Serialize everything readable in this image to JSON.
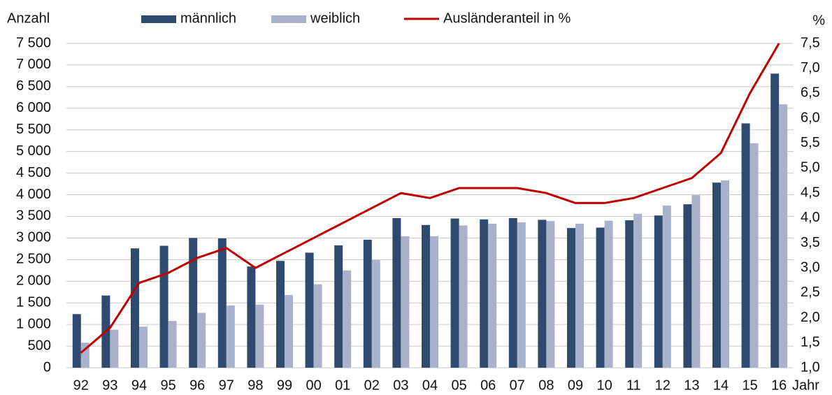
{
  "chart_data": {
    "type": "bar_line",
    "y_label": "Anzahl",
    "y2_label": "%",
    "x_label": "Jahr",
    "categories": [
      "92",
      "93",
      "94",
      "95",
      "96",
      "97",
      "98",
      "99",
      "00",
      "01",
      "02",
      "03",
      "04",
      "05",
      "06",
      "07",
      "08",
      "09",
      "10",
      "11",
      "12",
      "13",
      "14",
      "15",
      "16"
    ],
    "series": [
      {
        "name": "männlich",
        "color": "#2e4a6e",
        "values": [
          1240,
          1670,
          2760,
          2820,
          3000,
          2990,
          2340,
          2470,
          2660,
          2830,
          2960,
          3460,
          3300,
          3450,
          3430,
          3460,
          3420,
          3230,
          3240,
          3410,
          3520,
          3780,
          4280,
          5650,
          6800
        ]
      },
      {
        "name": "weiblich",
        "color": "#a9b1cc",
        "values": [
          580,
          880,
          950,
          1080,
          1270,
          1440,
          1460,
          1680,
          1930,
          2250,
          2490,
          3040,
          3040,
          3290,
          3330,
          3360,
          3390,
          3330,
          3400,
          3560,
          3750,
          3990,
          4330,
          5190,
          6090
        ]
      },
      {
        "name": "Ausländeranteil in %",
        "color": "#c00000",
        "axis": "y2",
        "values": [
          1.3,
          1.8,
          2.7,
          2.9,
          3.2,
          3.4,
          3.0,
          3.3,
          3.6,
          3.9,
          4.2,
          4.5,
          4.4,
          4.6,
          4.6,
          4.6,
          4.5,
          4.3,
          4.3,
          4.4,
          4.6,
          4.8,
          5.3,
          6.5,
          7.5
        ]
      }
    ],
    "ylim": [
      0,
      7500
    ],
    "yticks": [
      0,
      500,
      {
        "value": 1000,
        "label": "1 000"
      },
      {
        "value": 1500,
        "label": "1 500"
      },
      {
        "value": 2000,
        "label": "2 000"
      },
      {
        "value": 2500,
        "label": "2 500"
      },
      {
        "value": 3000,
        "label": "3 000"
      },
      {
        "value": 3500,
        "label": "3 500"
      },
      {
        "value": 4000,
        "label": "4 000"
      },
      {
        "value": 4500,
        "label": "4 500"
      },
      {
        "value": 5000,
        "label": "5 000"
      },
      {
        "value": 5500,
        "label": "5 500"
      },
      {
        "value": 6000,
        "label": "6 000"
      },
      {
        "value": 6500,
        "label": "6 500"
      },
      {
        "value": 7000,
        "label": "7 000"
      },
      {
        "value": 7500,
        "label": "7 500"
      }
    ],
    "y2lim": [
      1.0,
      7.5
    ],
    "y2ticks": [
      {
        "value": 1.0,
        "label": "1,0"
      },
      {
        "value": 1.5,
        "label": "1,5"
      },
      {
        "value": 2.0,
        "label": "2,0"
      },
      {
        "value": 2.5,
        "label": "2,5"
      },
      {
        "value": 3.0,
        "label": "3,0"
      },
      {
        "value": 3.5,
        "label": "3,5"
      },
      {
        "value": 4.0,
        "label": "4,0"
      },
      {
        "value": 4.5,
        "label": "4,5"
      },
      {
        "value": 5.0,
        "label": "5,0"
      },
      {
        "value": 5.5,
        "label": "5,5"
      },
      {
        "value": 6.0,
        "label": "6,0"
      },
      {
        "value": 6.5,
        "label": "6,5"
      },
      {
        "value": 7.0,
        "label": "7,0"
      },
      {
        "value": 7.5,
        "label": "7,5"
      }
    ],
    "grid": true
  }
}
